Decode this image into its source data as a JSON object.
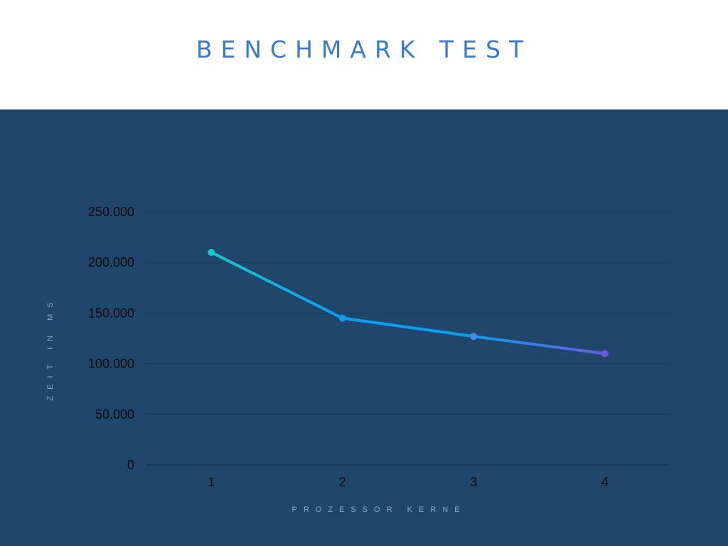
{
  "title": "BENCHMARK TEST",
  "colors": {
    "background": "#21466c",
    "title": "#3a7bc8",
    "gridline": "#1b3a5a",
    "axis_title": "#8fa6bf",
    "segment_start": "#1dc4c9",
    "segment_mid": "#0c9cf0",
    "segment_end": "#6a5ae0"
  },
  "chart_data": {
    "type": "line",
    "title": "BENCHMARK TEST",
    "xlabel": "PROZESSOR KERNE",
    "ylabel": "ZEIT IN MS",
    "categories": [
      "1",
      "2",
      "3",
      "4"
    ],
    "series": [
      {
        "values": [
          210000,
          145000,
          127000,
          110000
        ]
      }
    ],
    "ylim": [
      0,
      250000
    ],
    "yticks": [
      0,
      50000,
      100000,
      150000,
      200000,
      250000
    ],
    "ytick_labels": [
      "0",
      "50.000",
      "100.000",
      "150.000",
      "200.000",
      "250.000"
    ],
    "grid": true,
    "legend": "none"
  }
}
